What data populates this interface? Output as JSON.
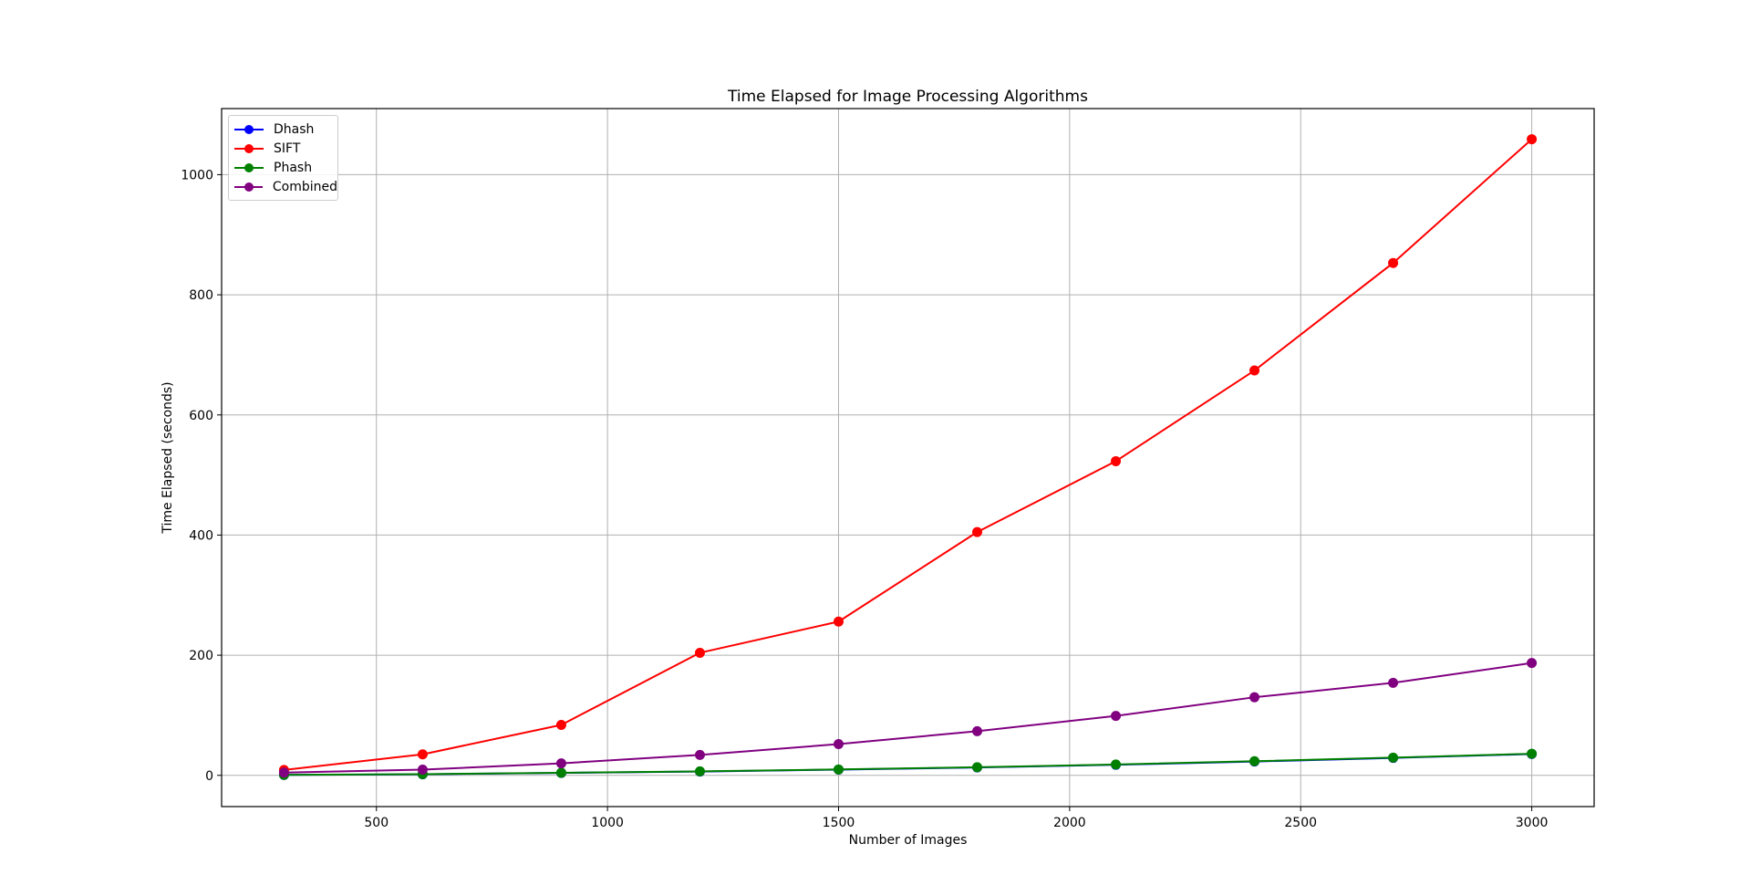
{
  "chart_data": {
    "type": "line",
    "title": "Time Elapsed for Image Processing Algorithms",
    "xlabel": "Number of Images",
    "ylabel": "Time Elapsed (seconds)",
    "x": [
      300,
      600,
      900,
      1200,
      1500,
      1800,
      2100,
      2400,
      2700,
      3000
    ],
    "xlim": [
      165,
      3135
    ],
    "ylim": [
      -52,
      1110
    ],
    "xticks": [
      500,
      1000,
      1500,
      2000,
      2500,
      3000
    ],
    "yticks": [
      0,
      200,
      400,
      600,
      800,
      1000
    ],
    "grid": true,
    "legend_position": "top-left",
    "marker": "circle",
    "series": [
      {
        "name": "Dhash",
        "color": "#0000ff",
        "values": [
          0.7,
          1.8,
          4.0,
          6.3,
          9.5,
          13.2,
          17.6,
          23.0,
          29.0,
          35.5
        ]
      },
      {
        "name": "SIFT",
        "color": "#ff0000",
        "values": [
          9.0,
          35.0,
          84.0,
          204.0,
          256.0,
          405.0,
          523.0,
          674.0,
          853.0,
          1059.0
        ]
      },
      {
        "name": "Phash",
        "color": "#008000",
        "values": [
          0.8,
          2.0,
          4.3,
          6.6,
          9.8,
          13.5,
          18.0,
          23.5,
          29.5,
          36.0
        ]
      },
      {
        "name": "Combined",
        "color": "#800080",
        "values": [
          4.5,
          9.5,
          20.0,
          34.0,
          52.0,
          73.5,
          99.0,
          130.0,
          154.0,
          187.0
        ]
      }
    ]
  }
}
